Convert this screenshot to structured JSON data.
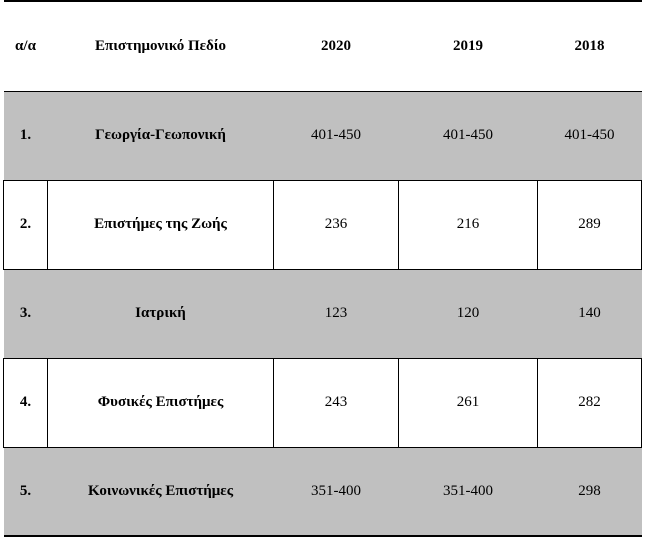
{
  "table": {
    "headers": [
      "α/α",
      "Επιστημονικό Πεδίο",
      "2020",
      "2019",
      "2018"
    ],
    "rows": [
      {
        "num": "1.",
        "field": "Γεωργία-Γεωπονική",
        "y2020": "401-450",
        "y2019": "401-450",
        "y2018": "401-450",
        "shaded": true
      },
      {
        "num": "2.",
        "field": "Επιστήμες της Ζωής",
        "y2020": "236",
        "y2019": "216",
        "y2018": "289",
        "shaded": false
      },
      {
        "num": "3.",
        "field": "Ιατρική",
        "y2020": "123",
        "y2019": "120",
        "y2018": "140",
        "shaded": true
      },
      {
        "num": "4.",
        "field": "Φυσικές Επιστήμες",
        "y2020": "243",
        "y2019": "261",
        "y2018": "282",
        "shaded": false
      },
      {
        "num": "5.",
        "field": "Κοινωνικές Επιστήμες",
        "y2020": "351-400",
        "y2019": "351-400",
        "y2018": "298",
        "shaded": true
      }
    ],
    "colors": {
      "shade": "#c0c0c0",
      "border": "#000000"
    }
  }
}
